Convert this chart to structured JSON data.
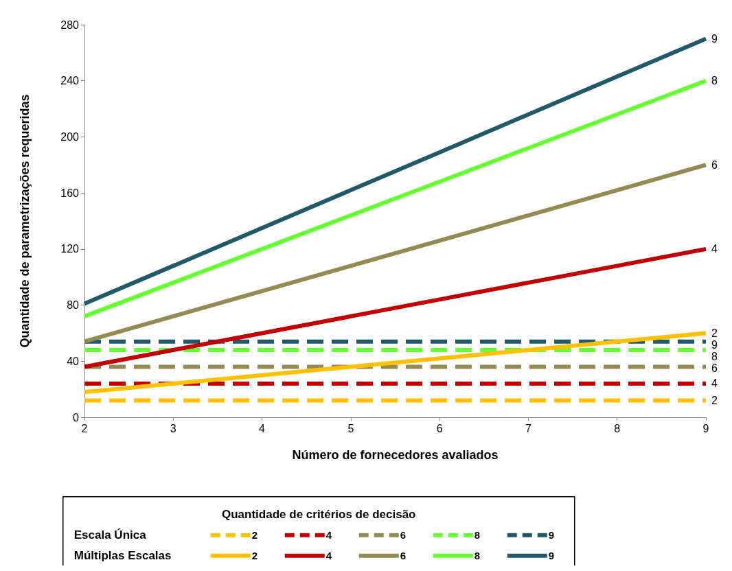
{
  "chart_data": {
    "type": "line",
    "xlabel": "Número de fornecedores avaliados",
    "ylabel": "Quantidade de parametrizações requeridas",
    "legend_title": "Quantidade de critérios de decisão",
    "annotations": [
      "Escala Única",
      "Múltiplas Escalas"
    ],
    "x": [
      2,
      3,
      4,
      5,
      6,
      7,
      8,
      9
    ],
    "xlim": [
      2,
      9
    ],
    "xticks": [
      2,
      3,
      4,
      5,
      6,
      7,
      8,
      9
    ],
    "ylim": [
      0,
      280
    ],
    "yticks": [
      0,
      40,
      80,
      120,
      160,
      200,
      240,
      280
    ],
    "grid": false,
    "legend": "bottom",
    "marker": "none",
    "series": [
      {
        "name": "2",
        "color": "#ffc000",
        "line_style": "dashed",
        "values": [
          12,
          12,
          12,
          12,
          12,
          12,
          12,
          12
        ]
      },
      {
        "name": "4",
        "color": "#c00000",
        "line_style": "dashed",
        "values": [
          24,
          24,
          24,
          24,
          24,
          24,
          24,
          24
        ]
      },
      {
        "name": "6",
        "color": "#948a54",
        "line_style": "dashed",
        "values": [
          36,
          36,
          36,
          36,
          36,
          36,
          36,
          36
        ]
      },
      {
        "name": "8",
        "color": "#66ff33",
        "line_style": "dashed",
        "values": [
          48,
          48,
          48,
          48,
          48,
          48,
          48,
          48
        ]
      },
      {
        "name": "9",
        "color": "#215968",
        "line_style": "dashed",
        "values": [
          54,
          54,
          54,
          54,
          54,
          54,
          54,
          54
        ]
      },
      {
        "name": "2",
        "color": "#ffc000",
        "line_style": "solid",
        "values": [
          18,
          24,
          30,
          36,
          42,
          48,
          54,
          60
        ]
      },
      {
        "name": "4",
        "color": "#c00000",
        "line_style": "solid",
        "values": [
          36,
          48,
          60,
          72,
          84,
          96,
          108,
          120
        ]
      },
      {
        "name": "6",
        "color": "#948a54",
        "line_style": "solid",
        "values": [
          54,
          72,
          90,
          108,
          126,
          144,
          162,
          180
        ]
      },
      {
        "name": "8",
        "color": "#66ff33",
        "line_style": "solid",
        "values": [
          72,
          96,
          120,
          144,
          168,
          192,
          216,
          240
        ]
      },
      {
        "name": "9",
        "color": "#215968",
        "line_style": "solid",
        "values": [
          81,
          108,
          135,
          162,
          189,
          216,
          243,
          270
        ]
      }
    ]
  }
}
